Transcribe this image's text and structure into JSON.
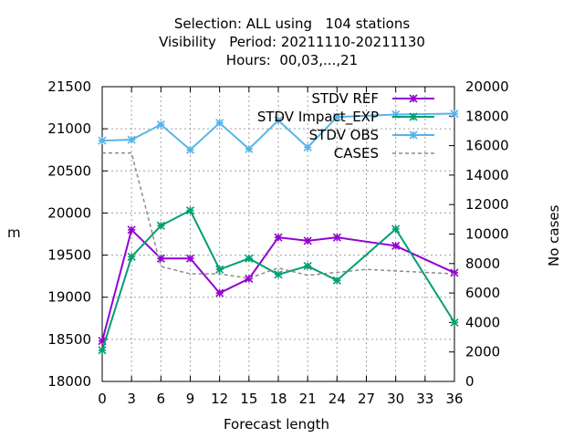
{
  "chart_data": {
    "type": "line",
    "title_lines": [
      "Selection: ALL using   104 stations",
      "Visibility   Period: 20211110-20211130",
      "Hours:  00,03,...,21"
    ],
    "xlabel": "Forecast length",
    "ylabel": "m",
    "y2label": "No cases",
    "xlim": [
      0,
      36
    ],
    "ylim": [
      18000,
      21500
    ],
    "y2lim": [
      0,
      20000
    ],
    "xticks": [
      "0",
      "3",
      "6",
      "9",
      "12",
      "15",
      "18",
      "21",
      "24",
      "27",
      "30",
      "33",
      "36"
    ],
    "yticks": [
      "18000",
      "18500",
      "19000",
      "19500",
      "20000",
      "20500",
      "21000",
      "21500"
    ],
    "y2ticks": [
      "0",
      "2000",
      "4000",
      "6000",
      "8000",
      "10000",
      "12000",
      "14000",
      "16000",
      "18000",
      "20000"
    ],
    "grid": true,
    "legend_position": "top-right",
    "series": [
      {
        "name": "STDV REF",
        "color": "#9400d3",
        "axis": "y1",
        "x": [
          0,
          3,
          6,
          9,
          12,
          15,
          18,
          21,
          24,
          30,
          36
        ],
        "values": [
          18480,
          19800,
          19460,
          19460,
          19050,
          19220,
          19710,
          19670,
          19710,
          19610,
          19290
        ]
      },
      {
        "name": "STDV Impact_EXP",
        "color": "#009e73",
        "axis": "y1",
        "x": [
          0,
          3,
          6,
          9,
          12,
          15,
          18,
          21,
          24,
          30,
          36
        ],
        "values": [
          18370,
          19480,
          19850,
          20030,
          19330,
          19460,
          19270,
          19370,
          19200,
          19810,
          18700
        ]
      },
      {
        "name": "STDV OBS",
        "color": "#56b4e9",
        "axis": "y1",
        "x": [
          0,
          3,
          6,
          9,
          12,
          15,
          18,
          21,
          24,
          30,
          36
        ],
        "values": [
          20860,
          20870,
          21050,
          20750,
          21070,
          20760,
          21100,
          20780,
          21140,
          21170,
          21180
        ]
      },
      {
        "name": "CASES",
        "color": "#8c8c8c",
        "axis": "y2",
        "x": [
          0,
          3,
          6,
          9,
          12,
          15,
          18,
          21,
          24,
          27,
          30,
          33,
          36
        ],
        "values": [
          15500,
          15500,
          7800,
          7300,
          7300,
          7000,
          7700,
          7200,
          7400,
          7600,
          7500,
          7400,
          7300
        ]
      }
    ]
  }
}
